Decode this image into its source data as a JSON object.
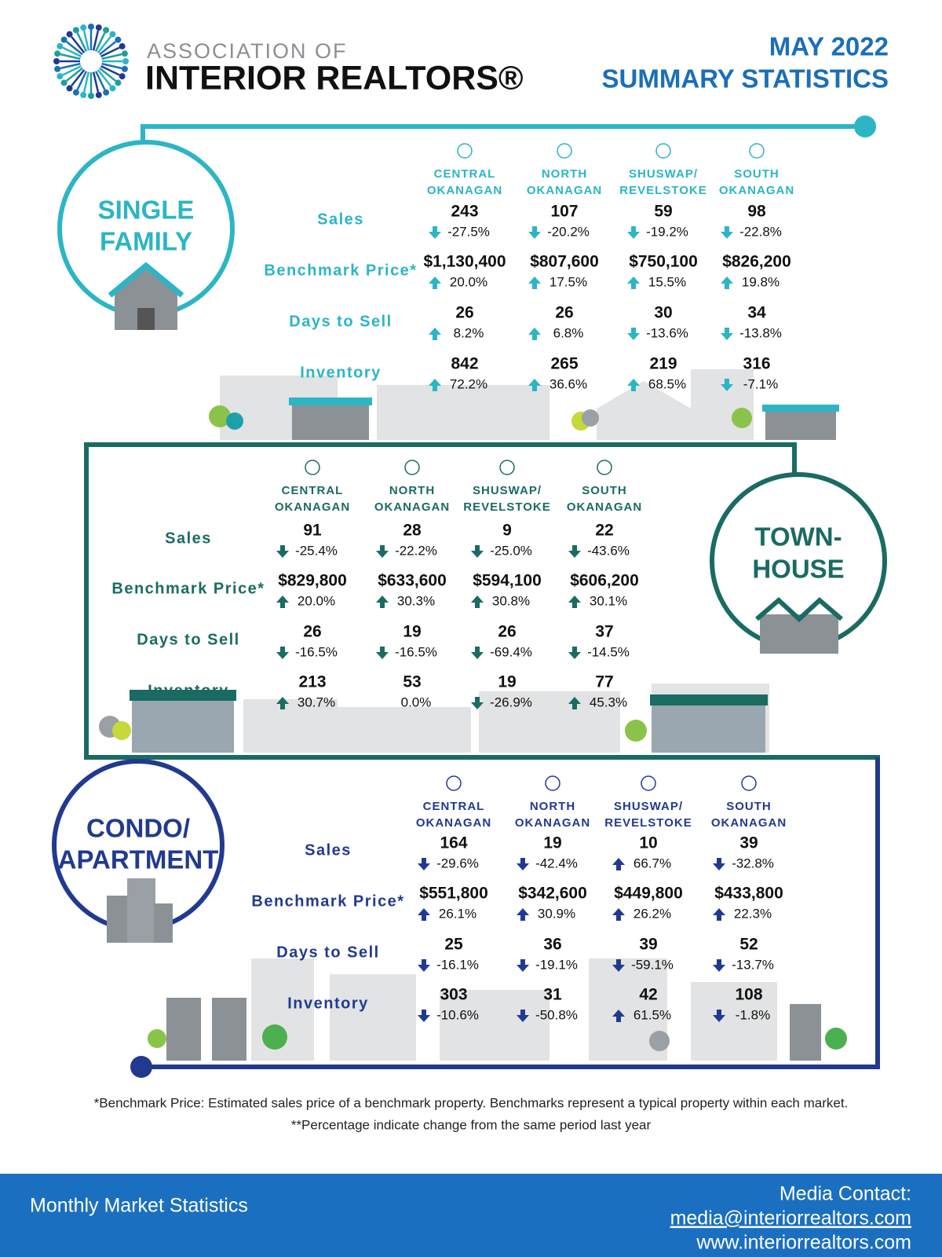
{
  "header": {
    "logo_top": "ASSOCIATION OF",
    "logo_main": "INTERIOR REALTORS®",
    "title_line1": "MAY 2022",
    "title_line2": "SUMMARY STATISTICS"
  },
  "sections": [
    {
      "label": [
        "SINGLE",
        "FAMILY"
      ],
      "regions": [
        [
          "CENTRAL",
          "OKANAGAN"
        ],
        [
          "NORTH",
          "OKANAGAN"
        ],
        [
          "SHUSWAP/",
          "REVELSTOKE"
        ],
        [
          "SOUTH",
          "OKANAGAN"
        ]
      ],
      "metrics": [
        {
          "name": "Sales",
          "values": [
            "243",
            "107",
            "59",
            "98"
          ],
          "changes": [
            "-27.5%",
            "-20.2%",
            "-19.2%",
            "-22.8%"
          ]
        },
        {
          "name": "Benchmark Price*",
          "values": [
            "$1,130,400",
            "$807,600",
            "$750,100",
            "$826,200"
          ],
          "changes": [
            "20.0%",
            "17.5%",
            "15.5%",
            "19.8%"
          ]
        },
        {
          "name": "Days to Sell",
          "values": [
            "26",
            "26",
            "30",
            "34"
          ],
          "changes": [
            "8.2%",
            "6.8%",
            "-13.6%",
            "-13.8%"
          ]
        },
        {
          "name": "Inventory",
          "values": [
            "842",
            "265",
            "219",
            "316"
          ],
          "changes": [
            "72.2%",
            "36.6%",
            "68.5%",
            "-7.1%"
          ]
        }
      ]
    },
    {
      "label": [
        "TOWN-",
        "HOUSE"
      ],
      "regions": [
        [
          "CENTRAL",
          "OKANAGAN"
        ],
        [
          "NORTH",
          "OKANAGAN"
        ],
        [
          "SHUSWAP/",
          "REVELSTOKE"
        ],
        [
          "SOUTH",
          "OKANAGAN"
        ]
      ],
      "metrics": [
        {
          "name": "Sales",
          "values": [
            "91",
            "28",
            "9",
            "22"
          ],
          "changes": [
            "-25.4%",
            "-22.2%",
            "-25.0%",
            "-43.6%"
          ]
        },
        {
          "name": "Benchmark Price*",
          "values": [
            "$829,800",
            "$633,600",
            "$594,100",
            "$606,200"
          ],
          "changes": [
            "20.0%",
            "30.3%",
            "30.8%",
            "30.1%"
          ]
        },
        {
          "name": "Days to Sell",
          "values": [
            "26",
            "19",
            "26",
            "37"
          ],
          "changes": [
            "-16.5%",
            "-16.5%",
            "-69.4%",
            "-14.5%"
          ]
        },
        {
          "name": "Inventory",
          "values": [
            "213",
            "53",
            "19",
            "77"
          ],
          "changes": [
            "30.7%",
            "0.0%",
            "-26.9%",
            "45.3%"
          ]
        }
      ]
    },
    {
      "label": [
        "CONDO/",
        "APARTMENT"
      ],
      "regions": [
        [
          "CENTRAL",
          "OKANAGAN"
        ],
        [
          "NORTH",
          "OKANAGAN"
        ],
        [
          "SHUSWAP/",
          "REVELSTOKE"
        ],
        [
          "SOUTH",
          "OKANAGAN"
        ]
      ],
      "metrics": [
        {
          "name": "Sales",
          "values": [
            "164",
            "19",
            "10",
            "39"
          ],
          "changes": [
            "-29.6%",
            "-42.4%",
            "66.7%",
            "-32.8%"
          ]
        },
        {
          "name": "Benchmark Price*",
          "values": [
            "$551,800",
            "$342,600",
            "$449,800",
            "$433,800"
          ],
          "changes": [
            "26.1%",
            "30.9%",
            "26.2%",
            "22.3%"
          ]
        },
        {
          "name": "Days to Sell",
          "values": [
            "25",
            "36",
            "39",
            "52"
          ],
          "changes": [
            "-16.1%",
            "-19.1%",
            "-59.1%",
            "-13.7%"
          ]
        },
        {
          "name": "Inventory",
          "values": [
            "303",
            "31",
            "42",
            "108"
          ],
          "changes": [
            "-10.6%",
            "-50.8%",
            "61.5%",
            "-1.8%"
          ]
        }
      ]
    }
  ],
  "footnotes": [
    "*Benchmark Price: Estimated sales price of a benchmark property. Benchmarks represent a typical property within each market.",
    "**Percentage indicate change from the same period last year"
  ],
  "footer": {
    "left": "Monthly Market Statistics",
    "contact_label": "Media Contact:",
    "email": "media@interiorrealtors.com",
    "website": "www.interiorrealtors.com"
  }
}
